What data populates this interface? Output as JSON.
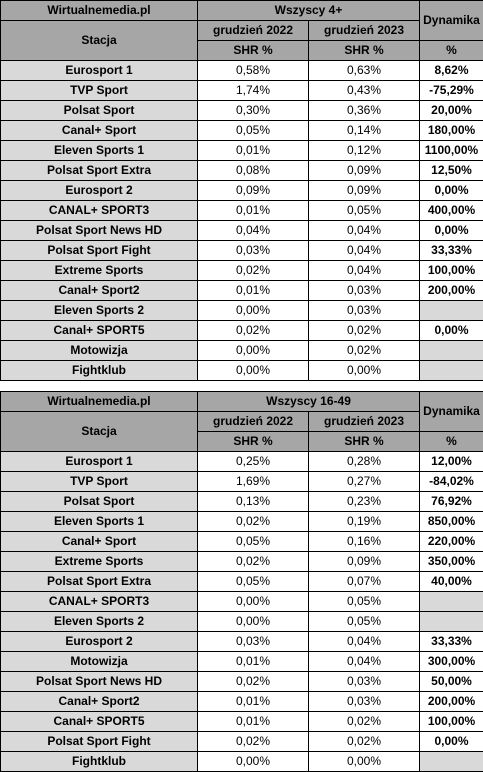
{
  "tables": [
    {
      "source": "Wirtualnemedia.pl",
      "group": "Wszyscy 4+",
      "dynamics_label": "Dynamika",
      "station_label": "Stacja",
      "period_a": "grudzień 2022",
      "period_b": "grudzień 2023",
      "shr_label": "SHR %",
      "pct_label": "%",
      "rows": [
        {
          "station": "Eurosport 1",
          "a": "0,58%",
          "b": "0,63%",
          "dyn": "8,62%"
        },
        {
          "station": "TVP Sport",
          "a": "1,74%",
          "b": "0,43%",
          "dyn": "-75,29%"
        },
        {
          "station": "Polsat Sport",
          "a": "0,30%",
          "b": "0,36%",
          "dyn": "20,00%"
        },
        {
          "station": "Canal+ Sport",
          "a": "0,05%",
          "b": "0,14%",
          "dyn": "180,00%"
        },
        {
          "station": "Eleven Sports 1",
          "a": "0,01%",
          "b": "0,12%",
          "dyn": "1100,00%"
        },
        {
          "station": "Polsat Sport Extra",
          "a": "0,08%",
          "b": "0,09%",
          "dyn": "12,50%"
        },
        {
          "station": "Eurosport 2",
          "a": "0,09%",
          "b": "0,09%",
          "dyn": "0,00%"
        },
        {
          "station": "CANAL+ SPORT3",
          "a": "0,01%",
          "b": "0,05%",
          "dyn": "400,00%"
        },
        {
          "station": "Polsat Sport News HD",
          "a": "0,04%",
          "b": "0,04%",
          "dyn": "0,00%"
        },
        {
          "station": "Polsat Sport Fight",
          "a": "0,03%",
          "b": "0,04%",
          "dyn": "33,33%"
        },
        {
          "station": "Extreme Sports",
          "a": "0,02%",
          "b": "0,04%",
          "dyn": "100,00%"
        },
        {
          "station": "Canal+ Sport2",
          "a": "0,01%",
          "b": "0,03%",
          "dyn": "200,00%"
        },
        {
          "station": "Eleven Sports 2",
          "a": "0,00%",
          "b": "0,03%",
          "dyn": ""
        },
        {
          "station": "Canal+ SPORT5",
          "a": "0,02%",
          "b": "0,02%",
          "dyn": "0,00%"
        },
        {
          "station": "Motowizja",
          "a": "0,00%",
          "b": "0,02%",
          "dyn": ""
        },
        {
          "station": "Fightklub",
          "a": "0,00%",
          "b": "0,00%",
          "dyn": ""
        }
      ]
    },
    {
      "source": "Wirtualnemedia.pl",
      "group": "Wszyscy 16-49",
      "dynamics_label": "Dynamika",
      "station_label": "Stacja",
      "period_a": "grudzień 2022",
      "period_b": "grudzień 2023",
      "shr_label": "SHR %",
      "pct_label": "%",
      "rows": [
        {
          "station": "Eurosport 1",
          "a": "0,25%",
          "b": "0,28%",
          "dyn": "12,00%"
        },
        {
          "station": "TVP Sport",
          "a": "1,69%",
          "b": "0,27%",
          "dyn": "-84,02%"
        },
        {
          "station": "Polsat Sport",
          "a": "0,13%",
          "b": "0,23%",
          "dyn": "76,92%"
        },
        {
          "station": "Eleven Sports 1",
          "a": "0,02%",
          "b": "0,19%",
          "dyn": "850,00%"
        },
        {
          "station": "Canal+ Sport",
          "a": "0,05%",
          "b": "0,16%",
          "dyn": "220,00%"
        },
        {
          "station": "Extreme Sports",
          "a": "0,02%",
          "b": "0,09%",
          "dyn": "350,00%"
        },
        {
          "station": "Polsat Sport Extra",
          "a": "0,05%",
          "b": "0,07%",
          "dyn": "40,00%"
        },
        {
          "station": "CANAL+ SPORT3",
          "a": "0,00%",
          "b": "0,05%",
          "dyn": ""
        },
        {
          "station": "Eleven Sports 2",
          "a": "0,00%",
          "b": "0,05%",
          "dyn": ""
        },
        {
          "station": "Eurosport 2",
          "a": "0,03%",
          "b": "0,04%",
          "dyn": "33,33%"
        },
        {
          "station": "Motowizja",
          "a": "0,01%",
          "b": "0,04%",
          "dyn": "300,00%"
        },
        {
          "station": "Polsat Sport News HD",
          "a": "0,02%",
          "b": "0,03%",
          "dyn": "50,00%"
        },
        {
          "station": "Canal+ Sport2",
          "a": "0,01%",
          "b": "0,03%",
          "dyn": "200,00%"
        },
        {
          "station": "Canal+ SPORT5",
          "a": "0,01%",
          "b": "0,02%",
          "dyn": "100,00%"
        },
        {
          "station": "Polsat Sport Fight",
          "a": "0,02%",
          "b": "0,02%",
          "dyn": "0,00%"
        },
        {
          "station": "Fightklub",
          "a": "0,00%",
          "b": "0,00%",
          "dyn": ""
        }
      ]
    }
  ]
}
